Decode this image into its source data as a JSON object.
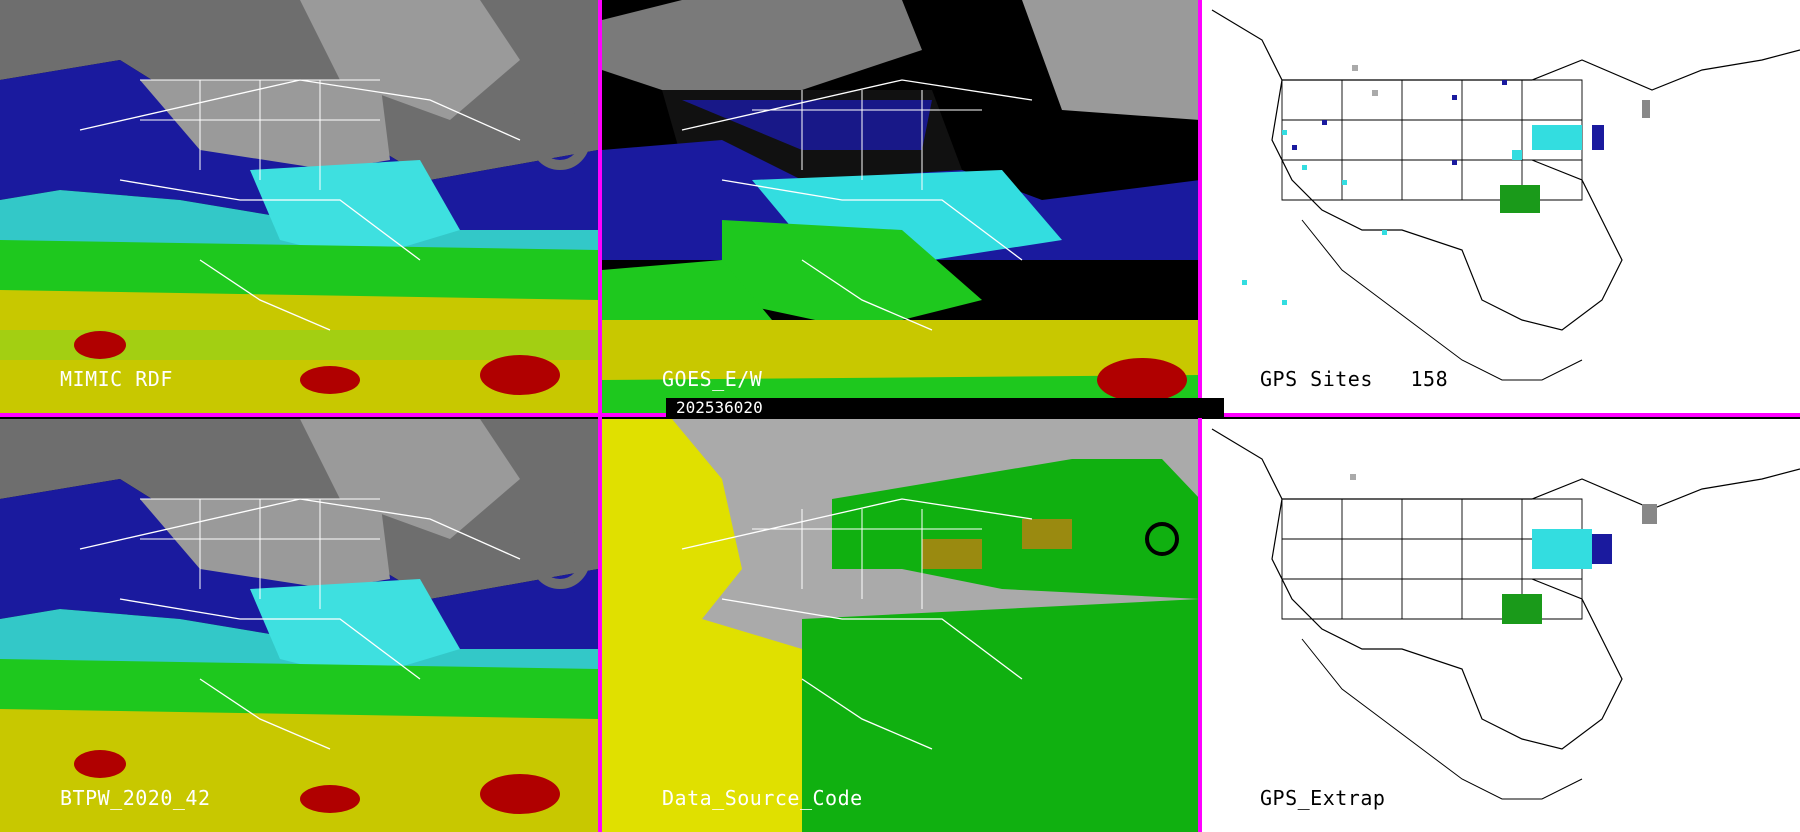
{
  "panels": [
    {
      "label": "MIMIC RDF",
      "style": "tpw-full"
    },
    {
      "label": "GOES_E/W",
      "style": "tpw-goes"
    },
    {
      "label": "GPS Sites   158",
      "style": "gps-sites"
    },
    {
      "label": "BTPW_2020_42",
      "style": "tpw-full"
    },
    {
      "label": "Data_Source_Code",
      "style": "source-code"
    },
    {
      "label": "GPS_Extrap",
      "style": "gps-extrap"
    }
  ],
  "timestamp": "202536020",
  "colors": {
    "divider": "#ff00ff",
    "moisture_dark_blue": "#1a1a9e",
    "moisture_blue": "#2a3ad0",
    "moisture_cyan": "#33dde0",
    "moisture_green": "#1ec81e",
    "moisture_yellow": "#d6d600",
    "moisture_red": "#b00000",
    "source_gray": "#aaaaaa",
    "source_yellow": "#e0e000",
    "source_green": "#10b010",
    "source_olive": "#9a8a10"
  }
}
